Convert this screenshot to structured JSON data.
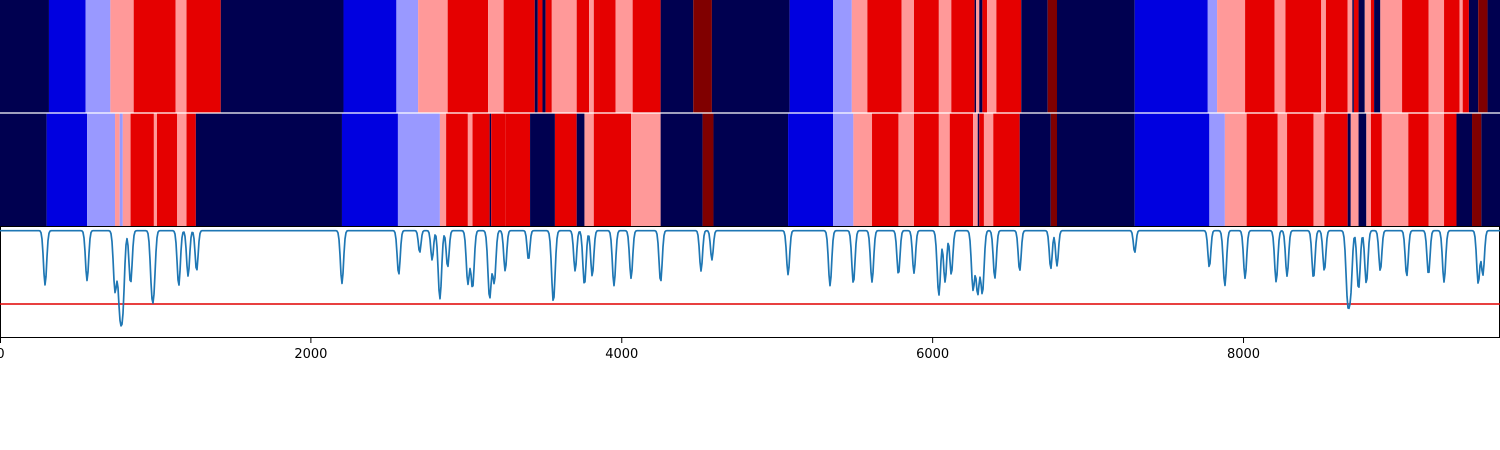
{
  "chart_data": {
    "type": "heatmap",
    "title": "",
    "xlabel": "",
    "ylabel": "",
    "xlim": [
      0,
      9650
    ],
    "x_ticks": [
      0,
      2000,
      4000,
      6000,
      8000
    ],
    "x_tick_labels": [
      "0",
      "2000",
      "4000",
      "6000",
      "8000"
    ],
    "grid": false,
    "legend": "none",
    "color_key": {
      "0": "#000050",
      "1": "#0000e0",
      "2": "#9999ff",
      "3": "#ff9999",
      "4": "#e50000",
      "5": "#800000"
    },
    "rows": [
      {
        "segments": [
          [
            0,
            315,
            0
          ],
          [
            315,
            550,
            1
          ],
          [
            550,
            710,
            2
          ],
          [
            710,
            860,
            3
          ],
          [
            860,
            1130,
            4
          ],
          [
            1130,
            1200,
            3
          ],
          [
            1200,
            1420,
            4
          ],
          [
            1420,
            2210,
            0
          ],
          [
            2210,
            2550,
            1
          ],
          [
            2550,
            2690,
            2
          ],
          [
            2690,
            2880,
            3
          ],
          [
            2880,
            3140,
            4
          ],
          [
            3140,
            3240,
            3
          ],
          [
            3240,
            3440,
            4
          ],
          [
            3440,
            3460,
            0
          ],
          [
            3460,
            3490,
            4
          ],
          [
            3490,
            3510,
            0
          ],
          [
            3510,
            3550,
            4
          ],
          [
            3550,
            3710,
            3
          ],
          [
            3710,
            3790,
            4
          ],
          [
            3790,
            3820,
            3
          ],
          [
            3820,
            3960,
            4
          ],
          [
            3960,
            4070,
            3
          ],
          [
            4070,
            4250,
            4
          ],
          [
            4250,
            4460,
            0
          ],
          [
            4460,
            4580,
            5
          ],
          [
            4580,
            5080,
            0
          ],
          [
            5080,
            5360,
            1
          ],
          [
            5360,
            5480,
            2
          ],
          [
            5480,
            5580,
            3
          ],
          [
            5580,
            5800,
            4
          ],
          [
            5800,
            5880,
            3
          ],
          [
            5880,
            6040,
            4
          ],
          [
            6040,
            6120,
            3
          ],
          [
            6120,
            6270,
            4
          ],
          [
            6270,
            6280,
            0
          ],
          [
            6280,
            6300,
            3
          ],
          [
            6300,
            6320,
            0
          ],
          [
            6320,
            6350,
            4
          ],
          [
            6350,
            6410,
            3
          ],
          [
            6410,
            6570,
            4
          ],
          [
            6570,
            6740,
            0
          ],
          [
            6740,
            6800,
            5
          ],
          [
            6800,
            7300,
            0
          ],
          [
            7300,
            7770,
            1
          ],
          [
            7770,
            7830,
            2
          ],
          [
            7830,
            8010,
            3
          ],
          [
            8010,
            8200,
            4
          ],
          [
            8200,
            8270,
            3
          ],
          [
            8270,
            8500,
            4
          ],
          [
            8500,
            8530,
            3
          ],
          [
            8530,
            8670,
            4
          ],
          [
            8670,
            8700,
            3
          ],
          [
            8700,
            8710,
            0
          ],
          [
            8710,
            8740,
            4
          ],
          [
            8740,
            8780,
            0
          ],
          [
            8780,
            8820,
            3
          ],
          [
            8820,
            8840,
            4
          ],
          [
            8840,
            8880,
            0
          ],
          [
            8880,
            9020,
            3
          ],
          [
            9020,
            9190,
            4
          ],
          [
            9190,
            9290,
            3
          ],
          [
            9290,
            9390,
            4
          ],
          [
            9390,
            9410,
            3
          ],
          [
            9410,
            9450,
            4
          ],
          [
            9450,
            9510,
            0
          ],
          [
            9510,
            9570,
            5
          ],
          [
            9570,
            9650,
            0
          ]
        ]
      },
      {
        "segments": [
          [
            0,
            300,
            0
          ],
          [
            300,
            560,
            1
          ],
          [
            560,
            740,
            2
          ],
          [
            740,
            770,
            3
          ],
          [
            770,
            790,
            2
          ],
          [
            790,
            840,
            3
          ],
          [
            840,
            990,
            4
          ],
          [
            990,
            1010,
            3
          ],
          [
            1010,
            1140,
            4
          ],
          [
            1140,
            1200,
            3
          ],
          [
            1200,
            1260,
            4
          ],
          [
            1260,
            2200,
            0
          ],
          [
            2200,
            2560,
            1
          ],
          [
            2560,
            2830,
            2
          ],
          [
            2830,
            2870,
            3
          ],
          [
            2870,
            3010,
            4
          ],
          [
            3010,
            3040,
            3
          ],
          [
            3040,
            3150,
            4
          ],
          [
            3150,
            3160,
            0
          ],
          [
            3160,
            3250,
            4
          ],
          [
            3250,
            3410,
            4
          ],
          [
            3410,
            3570,
            0
          ],
          [
            3570,
            3710,
            4
          ],
          [
            3710,
            3760,
            0
          ],
          [
            3760,
            3820,
            3
          ],
          [
            3820,
            4060,
            4
          ],
          [
            4060,
            4250,
            3
          ],
          [
            4250,
            4520,
            0
          ],
          [
            4520,
            4590,
            5
          ],
          [
            4590,
            5070,
            0
          ],
          [
            5070,
            5360,
            1
          ],
          [
            5360,
            5490,
            2
          ],
          [
            5490,
            5610,
            3
          ],
          [
            5610,
            5780,
            4
          ],
          [
            5780,
            5880,
            3
          ],
          [
            5880,
            6040,
            4
          ],
          [
            6040,
            6110,
            3
          ],
          [
            6110,
            6260,
            4
          ],
          [
            6260,
            6290,
            3
          ],
          [
            6290,
            6300,
            0
          ],
          [
            6300,
            6330,
            4
          ],
          [
            6330,
            6390,
            3
          ],
          [
            6390,
            6560,
            4
          ],
          [
            6560,
            6760,
            0
          ],
          [
            6760,
            6800,
            5
          ],
          [
            6800,
            7300,
            0
          ],
          [
            7300,
            7780,
            1
          ],
          [
            7780,
            7880,
            2
          ],
          [
            7880,
            8020,
            3
          ],
          [
            8020,
            8220,
            4
          ],
          [
            8220,
            8280,
            3
          ],
          [
            8280,
            8450,
            4
          ],
          [
            8450,
            8520,
            3
          ],
          [
            8520,
            8670,
            4
          ],
          [
            8670,
            8690,
            0
          ],
          [
            8690,
            8740,
            3
          ],
          [
            8740,
            8790,
            0
          ],
          [
            8790,
            8820,
            3
          ],
          [
            8820,
            8890,
            4
          ],
          [
            8890,
            9060,
            3
          ],
          [
            9060,
            9190,
            4
          ],
          [
            9190,
            9290,
            3
          ],
          [
            9290,
            9370,
            4
          ],
          [
            9370,
            9470,
            0
          ],
          [
            9470,
            9530,
            5
          ],
          [
            9530,
            9650,
            0
          ]
        ]
      }
    ],
    "line": {
      "ylim": [
        -1.45,
        0.05
      ],
      "baseline": 0,
      "threshold": -1.0,
      "dips": [
        [
          290,
          -0.74
        ],
        [
          560,
          -0.68
        ],
        [
          740,
          -0.82
        ],
        [
          770,
          -0.96
        ],
        [
          790,
          -0.98
        ],
        [
          840,
          -0.72
        ],
        [
          975,
          -0.62
        ],
        [
          990,
          -0.7
        ],
        [
          1150,
          -0.75
        ],
        [
          1210,
          -0.62
        ],
        [
          1265,
          -0.55
        ],
        [
          2200,
          -0.72
        ],
        [
          2565,
          -0.6
        ],
        [
          2700,
          -0.3
        ],
        [
          2780,
          -0.4
        ],
        [
          2830,
          -0.93
        ],
        [
          2880,
          -0.5
        ],
        [
          3010,
          -0.72
        ],
        [
          3040,
          -0.78
        ],
        [
          3150,
          -0.92
        ],
        [
          3180,
          -0.7
        ],
        [
          3250,
          -0.55
        ],
        [
          3400,
          -0.4
        ],
        [
          3560,
          -0.97
        ],
        [
          3700,
          -0.55
        ],
        [
          3760,
          -0.74
        ],
        [
          3810,
          -0.62
        ],
        [
          3950,
          -0.75
        ],
        [
          4060,
          -0.65
        ],
        [
          4250,
          -0.7
        ],
        [
          4510,
          -0.55
        ],
        [
          4580,
          -0.4
        ],
        [
          5070,
          -0.6
        ],
        [
          5340,
          -0.75
        ],
        [
          5490,
          -0.72
        ],
        [
          5610,
          -0.7
        ],
        [
          5780,
          -0.6
        ],
        [
          5880,
          -0.58
        ],
        [
          6040,
          -0.88
        ],
        [
          6080,
          -0.7
        ],
        [
          6120,
          -0.6
        ],
        [
          6260,
          -0.8
        ],
        [
          6290,
          -0.85
        ],
        [
          6320,
          -0.85
        ],
        [
          6400,
          -0.65
        ],
        [
          6560,
          -0.55
        ],
        [
          6760,
          -0.52
        ],
        [
          6800,
          -0.48
        ],
        [
          7300,
          -0.3
        ],
        [
          7780,
          -0.5
        ],
        [
          7880,
          -0.75
        ],
        [
          8010,
          -0.65
        ],
        [
          8210,
          -0.7
        ],
        [
          8280,
          -0.62
        ],
        [
          8450,
          -0.65
        ],
        [
          8520,
          -0.55
        ],
        [
          8670,
          -0.92
        ],
        [
          8690,
          -0.72
        ],
        [
          8740,
          -0.8
        ],
        [
          8790,
          -0.72
        ],
        [
          8880,
          -0.55
        ],
        [
          9050,
          -0.62
        ],
        [
          9190,
          -0.6
        ],
        [
          9290,
          -0.7
        ],
        [
          9510,
          -0.72
        ],
        [
          9540,
          -0.6
        ]
      ]
    }
  }
}
